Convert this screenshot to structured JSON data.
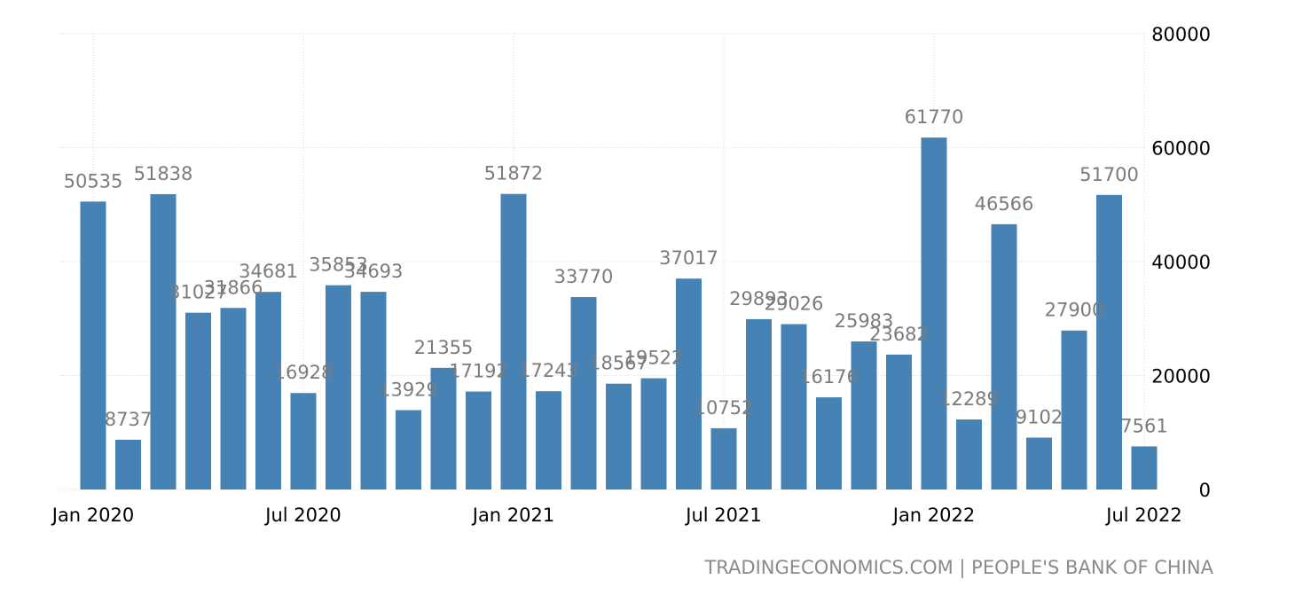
{
  "chart_data": {
    "type": "bar",
    "categories": [
      "2020-01",
      "2020-02",
      "2020-03",
      "2020-04",
      "2020-05",
      "2020-06",
      "2020-07",
      "2020-08",
      "2020-09",
      "2020-10",
      "2020-11",
      "2020-12",
      "2021-01",
      "2021-02",
      "2021-03",
      "2021-04",
      "2021-05",
      "2021-06",
      "2021-07",
      "2021-08",
      "2021-09",
      "2021-10",
      "2021-11",
      "2021-12",
      "2022-01",
      "2022-02",
      "2022-03",
      "2022-04",
      "2022-05",
      "2022-06",
      "2022-07"
    ],
    "values": [
      50535,
      8737,
      51838,
      31027,
      31866,
      34681,
      16928,
      35853,
      34693,
      13929,
      21355,
      17192,
      51872,
      17243,
      33770,
      18567,
      19522,
      37017,
      10752,
      29893,
      29026,
      16176,
      25983,
      23682,
      61770,
      12289,
      46566,
      9102,
      27900,
      51700,
      7561
    ],
    "x_tick_labels": [
      "Jan 2020",
      "Jul 2020",
      "Jan 2021",
      "Jul 2021",
      "Jan 2022",
      "Jul 2022"
    ],
    "y_tick_labels": [
      "0",
      "20000",
      "40000",
      "60000",
      "80000"
    ],
    "ylim": [
      0,
      80000
    ],
    "y_axis_side": "right",
    "grid": true,
    "bar_color": "#4682b4",
    "label_color": "#7b7b7b",
    "title": "",
    "xlabel": "",
    "ylabel": ""
  },
  "source": "TRADINGECONOMICS.COM | PEOPLE'S BANK OF CHINA"
}
